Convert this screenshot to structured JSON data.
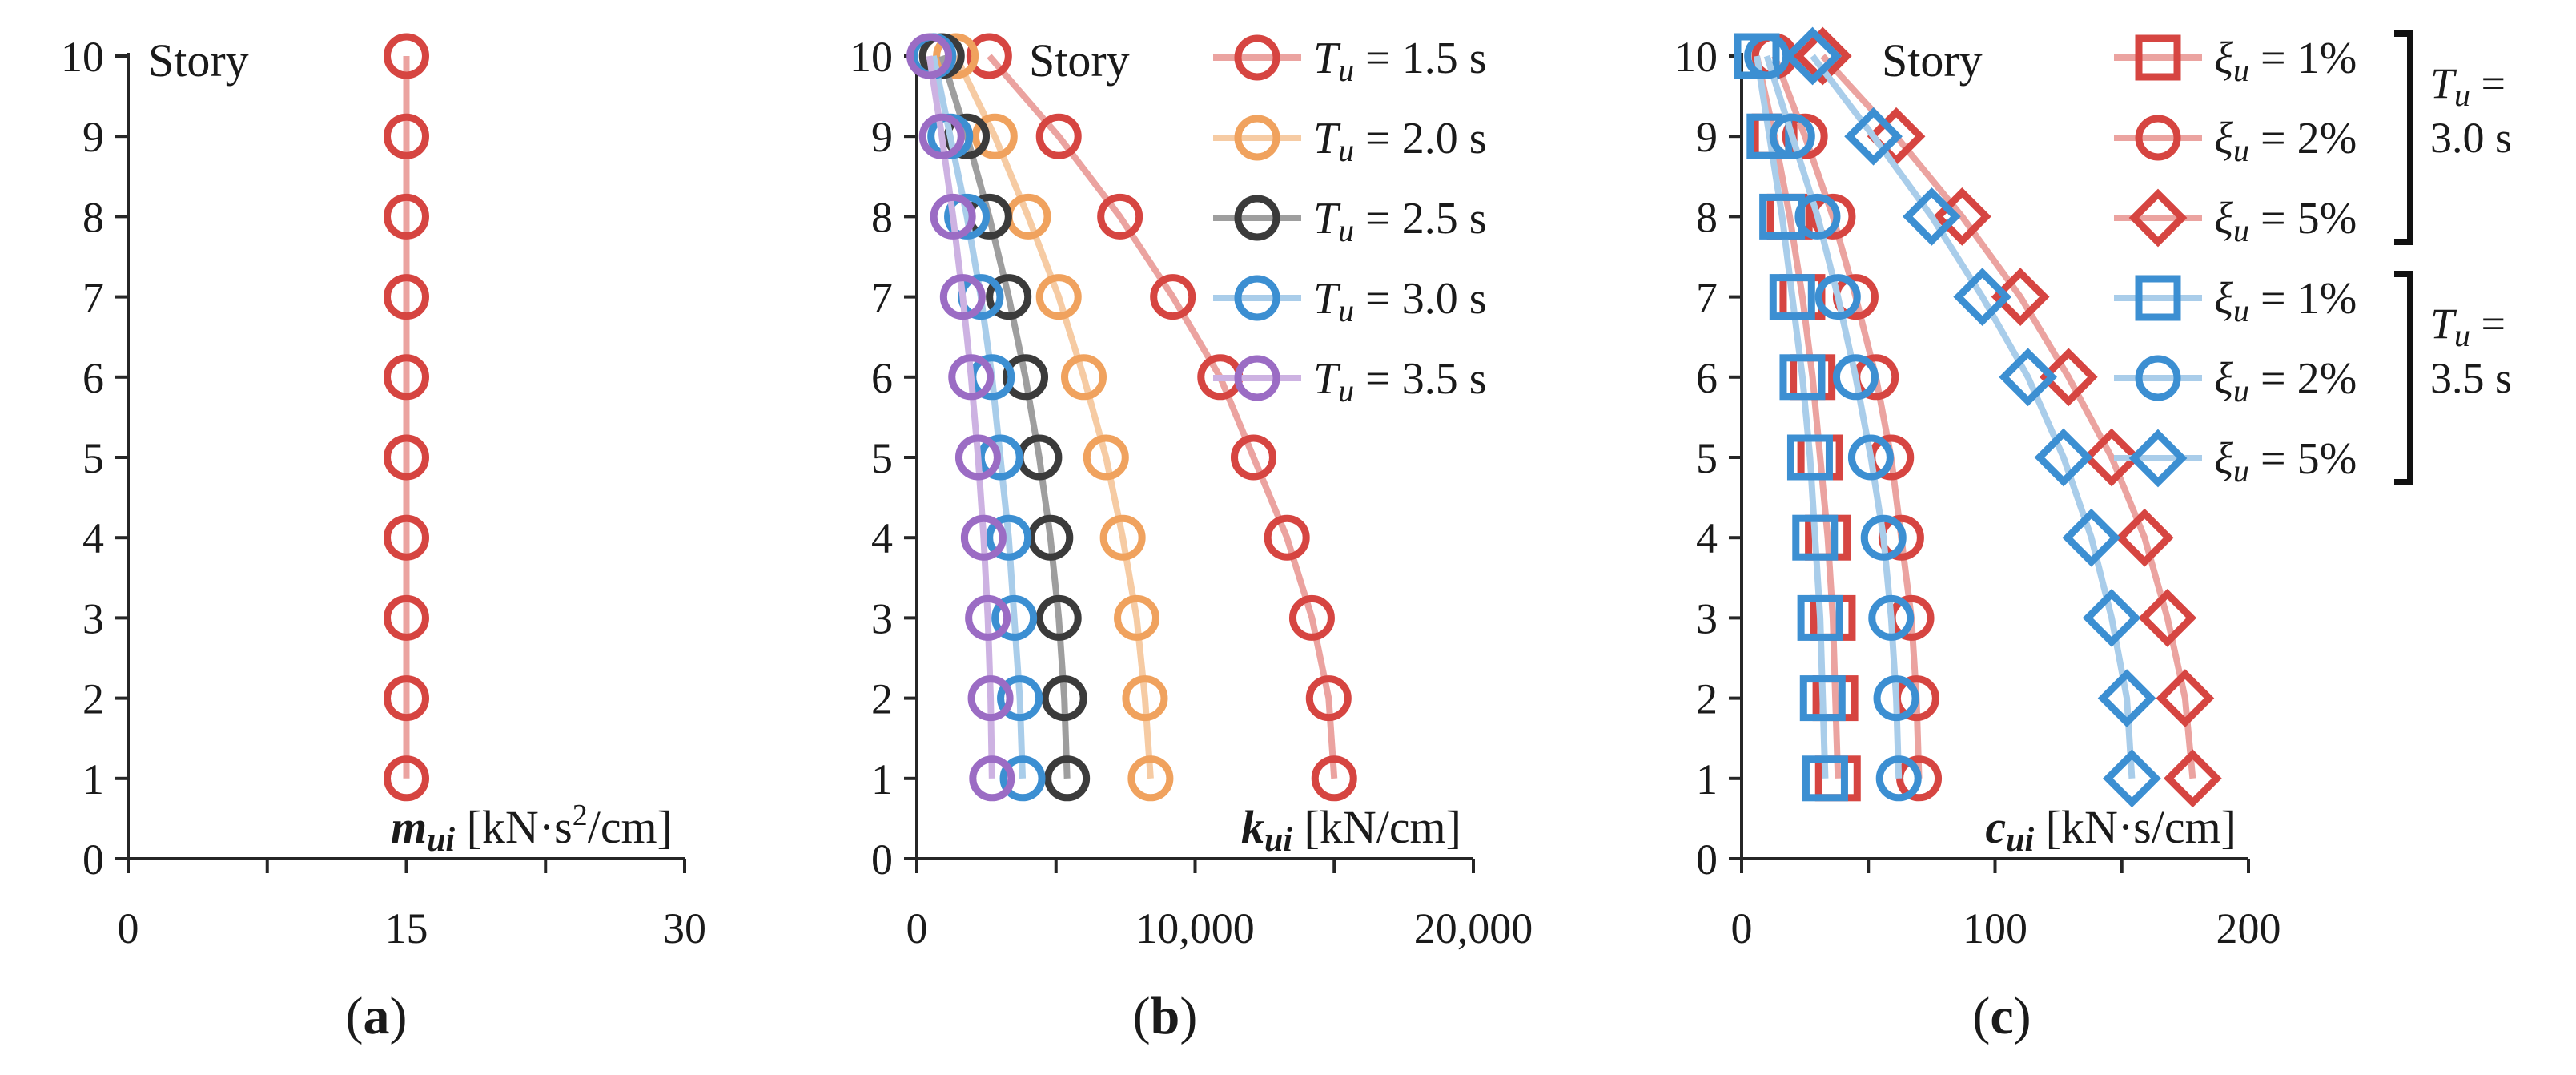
{
  "colors": {
    "red": "#D64541",
    "orange": "#F0A25E",
    "black": "#3B3B3B",
    "blue": "#3C8FD2",
    "purple": "#9B6CC4",
    "red_line": "#EBA3A0",
    "orange_line": "#F6CBA3",
    "black_line": "#9E9E9E",
    "blue_line": "#A9CDEA",
    "purple_line": "#CDB2E2",
    "axis": "#262626"
  },
  "chart_data": [
    {
      "id": "a",
      "type": "line",
      "caption_open": "(",
      "caption_letter": "a",
      "caption_close": ")",
      "story_label": "Story",
      "xlabel_symbol": "m",
      "xlabel_sub": "ui",
      "xlabel_unit_pre": " [kN·s",
      "xlabel_unit_sup": "2",
      "xlabel_unit_post": "/cm]",
      "xlim": [
        0,
        30
      ],
      "ylim": [
        0,
        10
      ],
      "x_major_ticks": [
        0,
        15,
        30
      ],
      "x_major_tick_labels": [
        "0",
        "15",
        "30"
      ],
      "x_minor_ticks": [
        7.5,
        22.5
      ],
      "y_ticks": [
        0,
        1,
        2,
        3,
        4,
        5,
        6,
        7,
        8,
        9,
        10
      ],
      "y_tick_labels": [
        "0",
        "1",
        "2",
        "3",
        "4",
        "5",
        "6",
        "7",
        "8",
        "9",
        "10"
      ],
      "series": [
        {
          "name": "m_ui",
          "color_key": "red",
          "line_key": "red_line",
          "marker": "circle",
          "values": [
            15,
            15,
            15,
            15,
            15,
            15,
            15,
            15,
            15,
            15
          ]
        }
      ]
    },
    {
      "id": "b",
      "type": "line",
      "caption_open": "(",
      "caption_letter": "b",
      "caption_close": ")",
      "story_label": "Story",
      "xlabel_symbol": "k",
      "xlabel_sub": "ui",
      "xlabel_unit_pre": " [kN/cm]",
      "xlabel_unit_sup": "",
      "xlabel_unit_post": "",
      "xlim": [
        0,
        20000
      ],
      "ylim": [
        0,
        10
      ],
      "x_major_ticks": [
        0,
        10000,
        20000
      ],
      "x_major_tick_labels": [
        "0",
        "10,000",
        "20,000"
      ],
      "x_minor_ticks": [
        5000,
        15000
      ],
      "y_ticks": [
        0,
        1,
        2,
        3,
        4,
        5,
        6,
        7,
        8,
        9,
        10
      ],
      "y_tick_labels": [
        "0",
        "1",
        "2",
        "3",
        "4",
        "5",
        "6",
        "7",
        "8",
        "9",
        "10"
      ],
      "series": [
        {
          "name": "T_u = 1.5 s",
          "legend_symbol": "T",
          "legend_sub": "u",
          "legend_rest": " = 1.5 s",
          "color_key": "red",
          "line_key": "red_line",
          "marker": "circle",
          "values": [
            15000,
            14800,
            14200,
            13300,
            12100,
            10900,
            9200,
            7300,
            5100,
            2600
          ]
        },
        {
          "name": "T_u = 2.0 s",
          "legend_symbol": "T",
          "legend_sub": "u",
          "legend_rest": " = 2.0 s",
          "color_key": "orange",
          "line_key": "orange_line",
          "marker": "circle",
          "values": [
            8400,
            8200,
            7900,
            7400,
            6800,
            6000,
            5100,
            4000,
            2800,
            1400
          ]
        },
        {
          "name": "T_u = 2.5 s",
          "legend_symbol": "T",
          "legend_sub": "u",
          "legend_rest": " = 2.5 s",
          "color_key": "black",
          "line_key": "black_line",
          "marker": "circle",
          "values": [
            5400,
            5300,
            5100,
            4800,
            4400,
            3900,
            3300,
            2600,
            1800,
            900
          ]
        },
        {
          "name": "T_u = 3.0 s",
          "legend_symbol": "T",
          "legend_sub": "u",
          "legend_rest": " = 3.0 s",
          "color_key": "blue",
          "line_key": "blue_line",
          "marker": "circle",
          "values": [
            3800,
            3700,
            3500,
            3300,
            3000,
            2700,
            2300,
            1800,
            1200,
            600
          ]
        },
        {
          "name": "T_u = 3.5 s",
          "legend_symbol": "T",
          "legend_sub": "u",
          "legend_rest": " = 3.5 s",
          "color_key": "purple",
          "line_key": "purple_line",
          "marker": "circle",
          "values": [
            2700,
            2650,
            2550,
            2400,
            2200,
            1950,
            1650,
            1300,
            900,
            450
          ]
        }
      ]
    },
    {
      "id": "c",
      "type": "line",
      "caption_open": "(",
      "caption_letter": "c",
      "caption_close": ")",
      "story_label": "Story",
      "xlabel_symbol": "c",
      "xlabel_sub": "ui",
      "xlabel_unit_pre": " [kN·s/cm]",
      "xlabel_unit_sup": "",
      "xlabel_unit_post": "",
      "xlim": [
        0,
        200
      ],
      "ylim": [
        0,
        10
      ],
      "x_major_ticks": [
        0,
        100,
        200
      ],
      "x_major_tick_labels": [
        "0",
        "100",
        "200"
      ],
      "x_minor_ticks": [
        50,
        150
      ],
      "y_ticks": [
        0,
        1,
        2,
        3,
        4,
        5,
        6,
        7,
        8,
        9,
        10
      ],
      "y_tick_labels": [
        "0",
        "1",
        "2",
        "3",
        "4",
        "5",
        "6",
        "7",
        "8",
        "9",
        "10"
      ],
      "series": [
        {
          "name": "T_u = 3.0 s, xi_u = 1%",
          "legend_symbol": "ξ",
          "legend_sub": "u",
          "legend_rest": " = 1%",
          "color_key": "red",
          "line_key": "red_line",
          "marker": "square",
          "values": [
            38,
            37,
            36,
            34,
            31,
            28,
            24,
            19,
            13,
            6
          ]
        },
        {
          "name": "T_u = 3.0 s, xi_u = 2%",
          "legend_symbol": "ξ",
          "legend_sub": "u",
          "legend_rest": " = 2%",
          "color_key": "red",
          "line_key": "red_line",
          "marker": "circle",
          "values": [
            70,
            69,
            67,
            63,
            59,
            53,
            45,
            36,
            25,
            13
          ]
        },
        {
          "name": "T_u = 3.0 s, xi_u = 5%",
          "legend_symbol": "ξ",
          "legend_sub": "u",
          "legend_rest": " = 5%",
          "color_key": "red",
          "line_key": "red_line",
          "marker": "diamond",
          "values": [
            178,
            175,
            168,
            159,
            146,
            129,
            110,
            87,
            61,
            32
          ]
        },
        {
          "name": "T_u = 3.5 s, xi_u = 1%",
          "legend_symbol": "ξ",
          "legend_sub": "u",
          "legend_rest": " = 1%",
          "color_key": "blue",
          "line_key": "blue_line",
          "marker": "square",
          "values": [
            33,
            32,
            31,
            29,
            27,
            24,
            20,
            16,
            11,
            6
          ]
        },
        {
          "name": "T_u = 3.5 s, xi_u = 2%",
          "legend_symbol": "ξ",
          "legend_sub": "u",
          "legend_rest": " = 2%",
          "color_key": "blue",
          "line_key": "blue_line",
          "marker": "circle",
          "values": [
            62,
            61,
            59,
            56,
            51,
            45,
            38,
            30,
            20,
            10
          ]
        },
        {
          "name": "T_u = 3.5 s, xi_u = 5%",
          "legend_symbol": "ξ",
          "legend_sub": "u",
          "legend_rest": " = 5%",
          "color_key": "blue",
          "line_key": "blue_line",
          "marker": "diamond",
          "values": [
            154,
            152,
            146,
            138,
            127,
            113,
            95,
            75,
            52,
            28
          ]
        }
      ],
      "legend_groups": [
        {
          "symbol": "T",
          "sub": "u",
          "rest": " =",
          "line2": "3.0 s"
        },
        {
          "symbol": "T",
          "sub": "u",
          "rest": " =",
          "line2": "3.5 s"
        }
      ]
    }
  ]
}
